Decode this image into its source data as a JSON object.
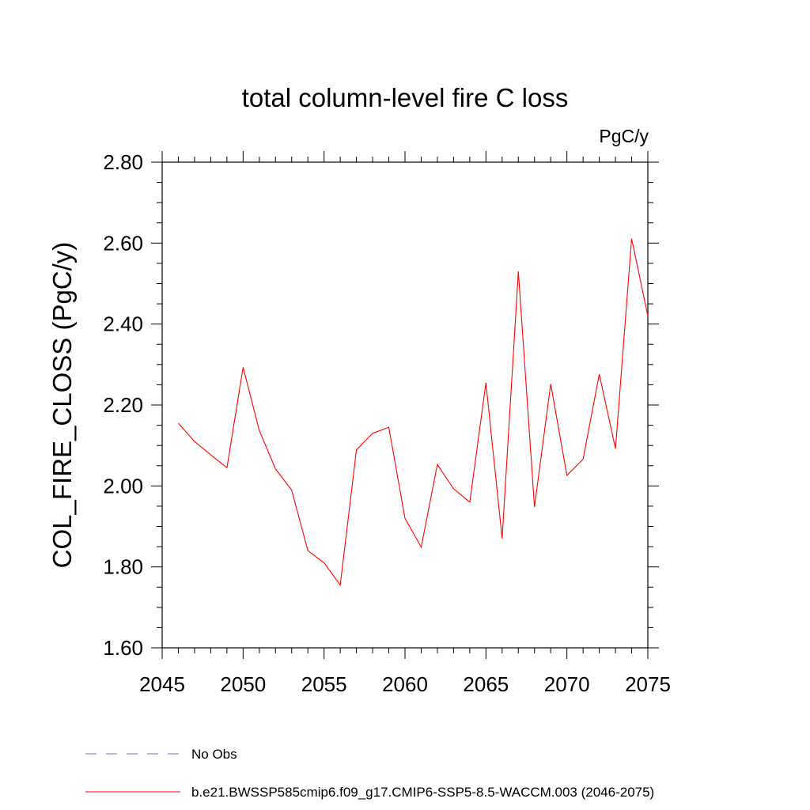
{
  "chart_data": {
    "type": "line",
    "title": "total column-level fire C loss",
    "units_label": "PgC/y",
    "ylabel": "COL_FIRE_CLOSS  (PgC/y)",
    "xlabel": "",
    "xlim": [
      2045,
      2075
    ],
    "ylim": [
      1.6,
      2.8
    ],
    "x_ticks": [
      2045,
      2050,
      2055,
      2060,
      2065,
      2070,
      2075
    ],
    "x_tick_labels": [
      "2045",
      "2050",
      "2055",
      "2060",
      "2065",
      "2070",
      "2075"
    ],
    "y_ticks": [
      1.6,
      1.8,
      2.0,
      2.2,
      2.4,
      2.6,
      2.8
    ],
    "y_tick_labels": [
      "1.60",
      "1.80",
      "2.00",
      "2.20",
      "2.40",
      "2.60",
      "2.80"
    ],
    "grid": false,
    "legend_position": "bottom",
    "legend": [
      {
        "label": "No Obs",
        "style": "dashed",
        "color": "#7b68c8"
      },
      {
        "label": "b.e21.BWSSP585cmip6.f09_g17.CMIP6-SSP5-8.5-WACCM.003 (2046-2075)",
        "style": "solid",
        "color": "#ff0000"
      }
    ],
    "series": [
      {
        "name": "b.e21.BWSSP585cmip6.f09_g17.CMIP6-SSP5-8.5-WACCM.003 (2046-2075)",
        "color": "#ff0000",
        "x": [
          2046,
          2047,
          2048,
          2049,
          2050,
          2051,
          2052,
          2053,
          2054,
          2055,
          2056,
          2057,
          2058,
          2059,
          2060,
          2061,
          2062,
          2063,
          2064,
          2065,
          2066,
          2067,
          2068,
          2069,
          2070,
          2071,
          2072,
          2073,
          2074,
          2075
        ],
        "values": [
          2.155,
          2.11,
          2.077,
          2.045,
          2.293,
          2.137,
          2.042,
          1.99,
          1.84,
          1.81,
          1.755,
          2.089,
          2.13,
          2.145,
          1.92,
          1.849,
          2.053,
          1.993,
          1.96,
          2.255,
          1.87,
          2.53,
          1.948,
          2.252,
          2.026,
          2.066,
          2.276,
          2.092,
          2.611,
          2.42
        ]
      }
    ]
  }
}
